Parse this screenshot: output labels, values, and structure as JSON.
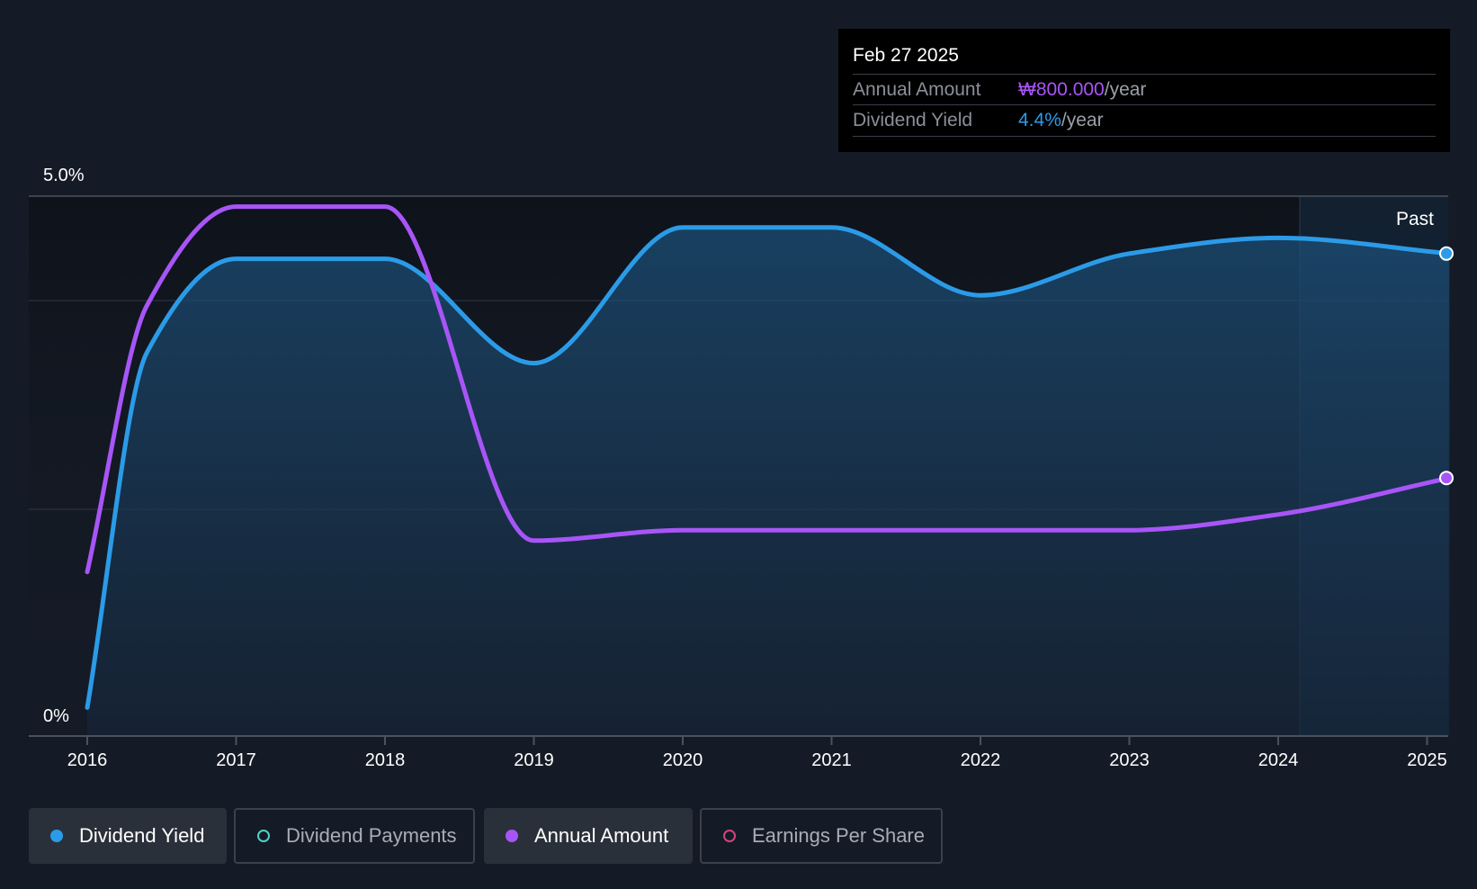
{
  "tooltip": {
    "date": "Feb 27 2025",
    "rows": [
      {
        "label": "Annual Amount",
        "value": "₩800.000",
        "unit": "/year",
        "color": "#a855f7"
      },
      {
        "label": "Dividend Yield",
        "value": "4.4%",
        "unit": "/year",
        "color": "#2b9be8"
      }
    ]
  },
  "chart_data": {
    "type": "line",
    "x_tick_labels": [
      "2016",
      "2017",
      "2018",
      "2019",
      "2020",
      "2021",
      "2022",
      "2023",
      "2024",
      "2025"
    ],
    "y_tick_labels": [
      "5.0%",
      "0%"
    ],
    "ylim": [
      0,
      5.0
    ],
    "past_label": "Past",
    "grid": true,
    "series": [
      {
        "name": "Dividend Yield",
        "color": "#2b9be8",
        "area": true,
        "points": [
          [
            2016.0,
            0.1
          ],
          [
            2016.4,
            3.5
          ],
          [
            2017.0,
            4.4
          ],
          [
            2018.0,
            4.4
          ],
          [
            2019.0,
            3.4
          ],
          [
            2020.0,
            4.7
          ],
          [
            2021.0,
            4.7
          ],
          [
            2022.0,
            4.05
          ],
          [
            2023.0,
            4.45
          ],
          [
            2024.0,
            4.6
          ],
          [
            2025.15,
            4.45
          ]
        ]
      },
      {
        "name": "Annual Amount",
        "color": "#a855f7",
        "area": false,
        "points": [
          [
            2016.0,
            1.4
          ],
          [
            2016.4,
            3.95
          ],
          [
            2017.0,
            4.9
          ],
          [
            2018.0,
            4.9
          ],
          [
            2019.0,
            1.7
          ],
          [
            2020.0,
            1.8
          ],
          [
            2021.0,
            1.8
          ],
          [
            2022.0,
            1.8
          ],
          [
            2023.0,
            1.8
          ],
          [
            2024.0,
            1.95
          ],
          [
            2025.15,
            2.3
          ]
        ]
      }
    ]
  },
  "legend": [
    {
      "label": "Dividend Yield",
      "color": "#2b9be8",
      "active": true
    },
    {
      "label": "Dividend Payments",
      "color": "#4fd1c5",
      "active": false
    },
    {
      "label": "Annual Amount",
      "color": "#a855f7",
      "active": true
    },
    {
      "label": "Earnings Per Share",
      "color": "#d0457e",
      "active": false
    }
  ]
}
